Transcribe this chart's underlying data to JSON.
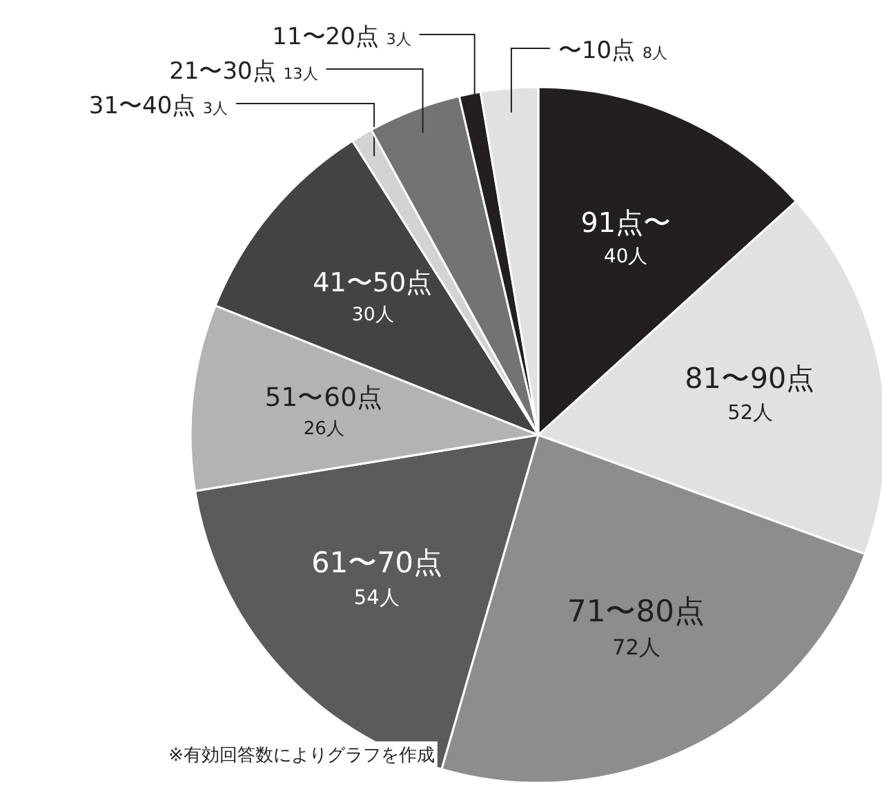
{
  "chart_data": {
    "type": "pie",
    "categories": [
      "91点〜",
      "81〜90点",
      "71〜80点",
      "61〜70点",
      "51〜60点",
      "41〜50点",
      "31〜40点",
      "21〜30点",
      "11〜20点",
      "〜10点"
    ],
    "values": [
      40,
      52,
      72,
      54,
      26,
      30,
      3,
      13,
      3,
      8
    ],
    "value_labels": [
      "40人",
      "52人",
      "72人",
      "54人",
      "26人",
      "30人",
      "3人",
      "13人",
      "3人",
      "8人"
    ],
    "colors": [
      "#231f20",
      "#e1e1e1",
      "#8d8d8d",
      "#5b5b5b",
      "#b3b3b3",
      "#434343",
      "#d3d3d3",
      "#737373",
      "#231f20",
      "#e1e1e1"
    ],
    "annotations": [
      "※有効回答数によりグラフを作成"
    ],
    "legend": false
  }
}
